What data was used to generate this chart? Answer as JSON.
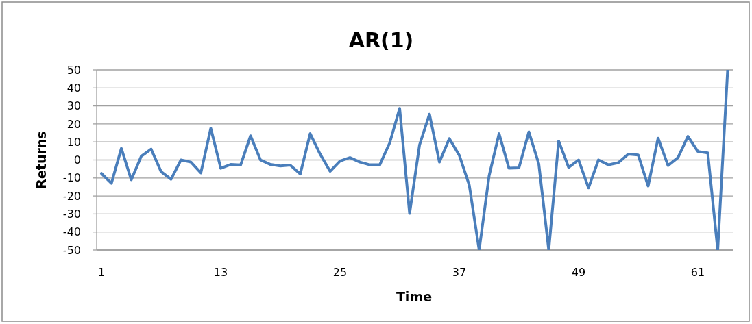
{
  "chart_data": {
    "type": "line",
    "title": "AR(1)",
    "xlabel": "Time",
    "ylabel": "Returns",
    "categories": [
      "1",
      null,
      null,
      null,
      null,
      null,
      null,
      null,
      null,
      null,
      null,
      null,
      "13",
      null,
      null,
      null,
      null,
      null,
      null,
      null,
      null,
      null,
      null,
      null,
      "25",
      null,
      null,
      null,
      null,
      null,
      null,
      null,
      null,
      null,
      null,
      null,
      "37",
      null,
      null,
      null,
      null,
      null,
      null,
      null,
      null,
      null,
      null,
      null,
      "49",
      null,
      null,
      null,
      null,
      null,
      null,
      null,
      null,
      null,
      null,
      null,
      "61",
      null,
      null,
      null
    ],
    "series": [
      {
        "color": "#4a7ebb",
        "values": [
          -7.5,
          -13,
          6.4,
          -11,
          2,
          6,
          -6.5,
          -10.7,
          0,
          -1.2,
          -7.2,
          17.6,
          -4.6,
          -2.5,
          -2.8,
          13.4,
          0,
          -2.5,
          -3.3,
          -2.9,
          -7.8,
          14.6,
          3.2,
          -6.3,
          -0.6,
          1.3,
          -1.2,
          -2.7,
          -2.7,
          9.5,
          28.6,
          -29.7,
          8.3,
          25.4,
          -1.2,
          11.9,
          2.6,
          -13.9,
          -50,
          -8.8,
          14.6,
          -4.6,
          -4.4,
          15.6,
          -2.2,
          -50,
          10.5,
          -4.1,
          0,
          -15.5,
          0,
          -2.7,
          -1.5,
          3.2,
          2.8,
          -14.5,
          12.1,
          -3.1,
          1.3,
          13.1,
          4.7,
          3.9,
          -50,
          50
        ]
      }
    ],
    "ylim": [
      -50,
      50
    ],
    "yticks": [
      -50,
      -40,
      -30,
      -20,
      -10,
      0,
      10,
      20,
      30,
      40,
      50
    ],
    "grid": "y",
    "marker": "none",
    "line_style": "solid"
  }
}
